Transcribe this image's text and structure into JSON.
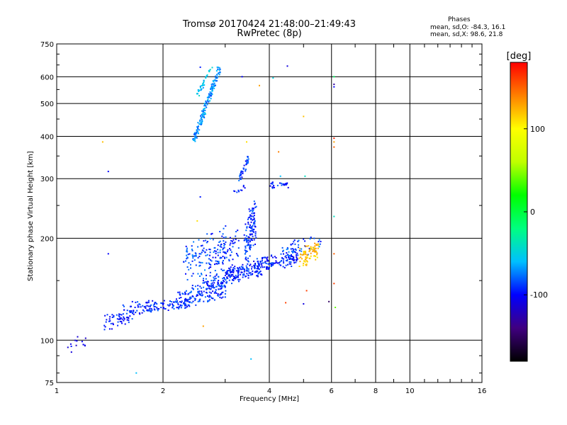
{
  "header": {
    "title_line1": "Tromsø 20170424 21:48:00–21:49:43",
    "title_line2": "RwPretec (8p)",
    "stats_heading": "Phases",
    "stats_o": "mean, sd,O: -84.3, 16.1",
    "stats_x": "mean, sd,X:  98.6, 21.8"
  },
  "chart_data": {
    "type": "scatter",
    "xlabel": "Frequency [MHz]",
    "ylabel": "Stationary phase Virtual Height [km]",
    "x_scale": "log2",
    "y_scale": "log",
    "xlim": [
      1,
      16
    ],
    "ylim": [
      75,
      750
    ],
    "x_ticks": [
      1,
      2,
      4,
      6,
      8,
      10,
      16
    ],
    "x_grid": [
      2,
      4,
      6,
      8,
      10
    ],
    "y_ticks": [
      75,
      100,
      200,
      300,
      400,
      500,
      600,
      750
    ],
    "y_grid": [
      100,
      200,
      300,
      400,
      500,
      600
    ],
    "grid": true,
    "colorbar": {
      "label": "[deg]",
      "min": -180,
      "max": 180,
      "ticks": [
        100,
        0,
        -100
      ],
      "colors": [
        "#000000",
        "#400080",
        "#0000ff",
        "#00c0ff",
        "#00ff80",
        "#00ff00",
        "#c0ff00",
        "#ffff00",
        "#ff8000",
        "#ff0000"
      ]
    },
    "series": [
      {
        "segments": [
          {
            "x0": 1.05,
            "x1": 1.25,
            "y0": 92,
            "y1": 104,
            "n": 14,
            "ph": -105,
            "js": 4
          },
          {
            "x0": 1.35,
            "x1": 1.65,
            "y0": 108,
            "y1": 122,
            "n": 60,
            "ph": -95,
            "js": 5
          },
          {
            "x0": 1.55,
            "x1": 1.9,
            "y0": 118,
            "y1": 132,
            "n": 50,
            "ph": -95,
            "js": 5
          },
          {
            "x0": 1.8,
            "x1": 2.4,
            "y0": 122,
            "y1": 132,
            "n": 80,
            "ph": -90,
            "js": 4
          },
          {
            "x0": 2.2,
            "x1": 3.0,
            "y0": 126,
            "y1": 150,
            "n": 150,
            "ph": -90,
            "js": 5
          },
          {
            "x0": 2.6,
            "x1": 3.3,
            "y0": 140,
            "y1": 165,
            "n": 100,
            "ph": -90,
            "js": 5
          },
          {
            "x0": 3.0,
            "x1": 3.8,
            "y0": 150,
            "y1": 168,
            "n": 120,
            "ph": -95,
            "js": 4
          },
          {
            "x0": 3.6,
            "x1": 4.8,
            "y0": 160,
            "y1": 182,
            "n": 120,
            "ph": -95,
            "js": 4
          },
          {
            "x0": 2.3,
            "x1": 3.0,
            "y0": 150,
            "y1": 215,
            "n": 110,
            "ph": -85,
            "js": 6
          },
          {
            "x0": 2.7,
            "x1": 3.3,
            "y0": 160,
            "y1": 210,
            "n": 70,
            "ph": -90,
            "js": 6
          },
          {
            "x0": 3.4,
            "x1": 3.65,
            "y0": 160,
            "y1": 260,
            "n": 130,
            "ph": -90,
            "js": 5
          },
          {
            "x0": 3.3,
            "x1": 3.5,
            "y0": 300,
            "y1": 350,
            "n": 40,
            "ph": -90,
            "js": 4
          },
          {
            "x0": 3.2,
            "x1": 3.4,
            "y0": 265,
            "y1": 290,
            "n": 10,
            "ph": -95,
            "js": 3
          },
          {
            "x0": 4.05,
            "x1": 4.55,
            "y0": 283,
            "y1": 292,
            "n": 25,
            "ph": -95,
            "js": 3
          },
          {
            "x0": 4.3,
            "x1": 5.6,
            "y0": 175,
            "y1": 200,
            "n": 60,
            "ph": -85,
            "js": 5
          },
          {
            "x0": 4.9,
            "x1": 5.5,
            "y0": 165,
            "y1": 195,
            "n": 80,
            "ph": 120,
            "js": 5
          },
          {
            "x0": 2.45,
            "x1": 2.9,
            "y0": 390,
            "y1": 640,
            "n": 170,
            "ph": -70,
            "js": 4
          },
          {
            "x0": 2.5,
            "x1": 2.75,
            "y0": 530,
            "y1": 640,
            "n": 35,
            "ph": -55,
            "js": 3
          }
        ]
      }
    ],
    "points": [
      {
        "x": 1.35,
        "y": 385,
        "ph": 120
      },
      {
        "x": 1.4,
        "y": 315,
        "ph": -100
      },
      {
        "x": 1.4,
        "y": 180,
        "ph": -100
      },
      {
        "x": 1.68,
        "y": 80,
        "ph": -60
      },
      {
        "x": 2.5,
        "y": 225,
        "ph": 110
      },
      {
        "x": 2.55,
        "y": 265,
        "ph": -95
      },
      {
        "x": 2.6,
        "y": 110,
        "ph": 130
      },
      {
        "x": 2.55,
        "y": 640,
        "ph": -95
      },
      {
        "x": 2.85,
        "y": 640,
        "ph": -60
      },
      {
        "x": 3.35,
        "y": 600,
        "ph": -100
      },
      {
        "x": 3.45,
        "y": 385,
        "ph": 110
      },
      {
        "x": 3.55,
        "y": 88,
        "ph": -60
      },
      {
        "x": 3.75,
        "y": 565,
        "ph": 130
      },
      {
        "x": 4.1,
        "y": 595,
        "ph": -50
      },
      {
        "x": 4.25,
        "y": 360,
        "ph": 140
      },
      {
        "x": 4.3,
        "y": 305,
        "ph": -60
      },
      {
        "x": 4.5,
        "y": 645,
        "ph": -110
      },
      {
        "x": 4.45,
        "y": 129,
        "ph": 160
      },
      {
        "x": 5.0,
        "y": 458,
        "ph": 120
      },
      {
        "x": 5.0,
        "y": 128,
        "ph": -110
      },
      {
        "x": 5.05,
        "y": 305,
        "ph": -40
      },
      {
        "x": 5.1,
        "y": 140,
        "ph": 160
      },
      {
        "x": 5.9,
        "y": 130,
        "ph": -150
      },
      {
        "x": 6.1,
        "y": 600,
        "ph": -10
      },
      {
        "x": 6.1,
        "y": 570,
        "ph": -130
      },
      {
        "x": 6.1,
        "y": 560,
        "ph": -100
      },
      {
        "x": 6.1,
        "y": 395,
        "ph": 170
      },
      {
        "x": 6.1,
        "y": 385,
        "ph": 130
      },
      {
        "x": 6.1,
        "y": 372,
        "ph": 150
      },
      {
        "x": 6.1,
        "y": 232,
        "ph": -40
      },
      {
        "x": 6.1,
        "y": 180,
        "ph": 150
      },
      {
        "x": 6.1,
        "y": 147,
        "ph": 160
      },
      {
        "x": 6.15,
        "y": 125,
        "ph": 40
      }
    ]
  }
}
